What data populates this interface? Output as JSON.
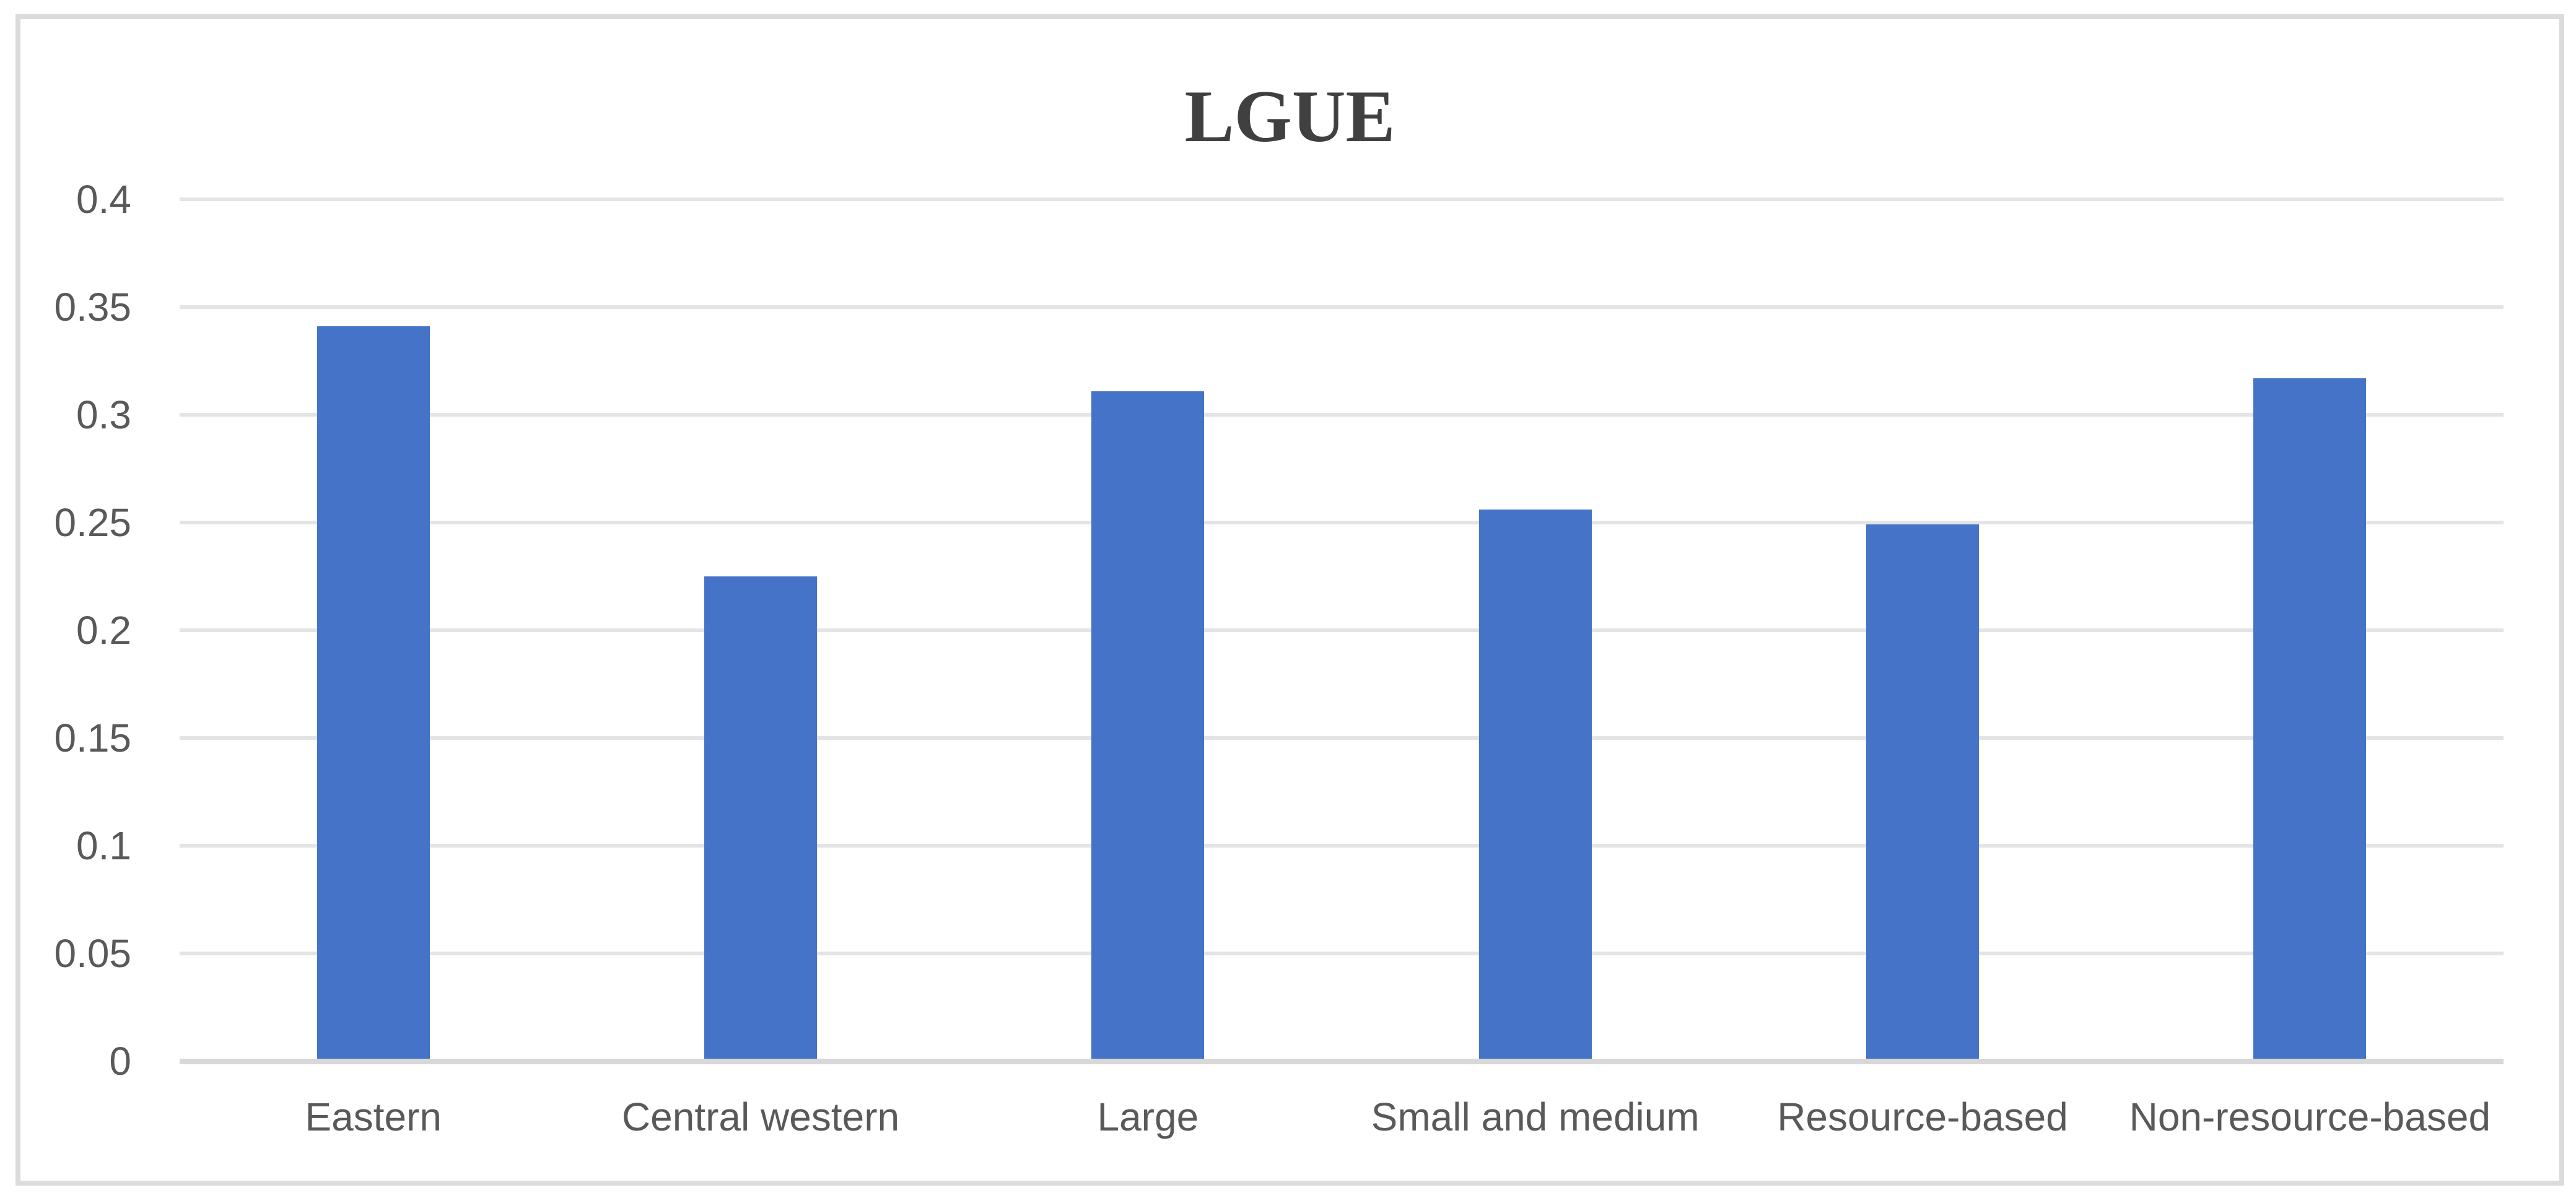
{
  "chart_data": {
    "type": "bar",
    "title": "LGUE",
    "categories": [
      "Eastern",
      "Central western",
      "Large",
      "Small and medium",
      "Resource-based",
      "Non-resource-based"
    ],
    "values": [
      0.341,
      0.225,
      0.311,
      0.256,
      0.249,
      0.317
    ],
    "xlabel": "",
    "ylabel": "",
    "ylim": [
      0,
      0.4
    ],
    "ytick_interval": 0.05,
    "ytick_labels": [
      "0",
      "0.05",
      "0.1",
      "0.15",
      "0.2",
      "0.25",
      "0.3",
      "0.35",
      "0.4"
    ],
    "grid": true,
    "legend": false,
    "colors": {
      "bar": "#4473C7",
      "gridline": "#E4E4E4",
      "axis_line": "#D8D8D8",
      "tick_label": "#595959",
      "title": "#404040",
      "figure_border": "#DBDBDB",
      "background": "#FFFFFF"
    }
  }
}
